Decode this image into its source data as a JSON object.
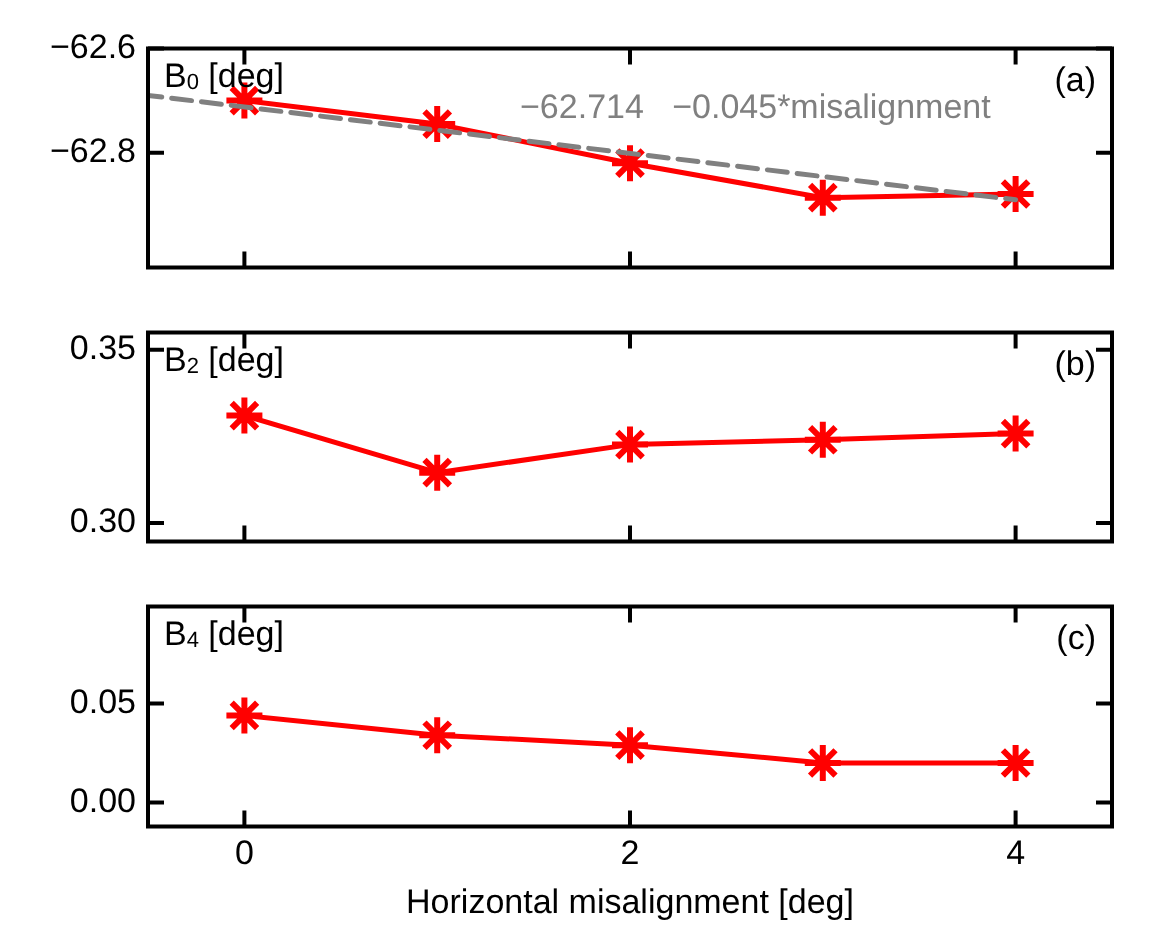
{
  "chart_data": [
    {
      "type": "line",
      "ylabel": "B$_{0}$ [deg]",
      "x": [
        0,
        1,
        2,
        3,
        4
      ],
      "xlim": [
        -0.5,
        4.5
      ],
      "xticks": [
        0,
        2,
        4
      ],
      "ylim": [
        -63.02,
        -62.6
      ],
      "yticks": [
        -62.6,
        -62.8
      ],
      "tick_labels": "y",
      "marker": "cross",
      "line_style": "solid",
      "series": [
        {
          "color": "#ff0000",
          "values": [
            -62.7,
            -62.745,
            -62.82,
            -62.886,
            -62.879
          ]
        },
        {
          "type": "line",
          "color": "#808080",
          "x": [
            -0.5,
            4
          ],
          "values": [
            -62.69,
            -62.89
          ],
          "marker": "none",
          "line_style": "dashed"
        }
      ],
      "annotations": [
        "(a)",
        "−62.714   −0.045*misalignment"
      ]
    },
    {
      "type": "line",
      "ylabel": "B$_{2}$ [deg]",
      "x": [
        0,
        1,
        2,
        3,
        4
      ],
      "xlim": [
        -0.5,
        4.5
      ],
      "xticks": [
        0,
        2,
        4
      ],
      "ylim": [
        0.2946,
        0.355
      ],
      "yticks": [
        0.35,
        {
          "value": 0.3,
          "label": "0.30"
        }
      ],
      "tick_labels": "y",
      "marker": "cross",
      "line_style": "solid",
      "series": [
        {
          "color": "#ff0000",
          "values": [
            0.331,
            0.3145,
            0.3226,
            0.324,
            0.3258
          ]
        }
      ],
      "annotations": [
        "(b)"
      ]
    },
    {
      "type": "line",
      "ylabel": "B$_{4}$ [deg]",
      "xlabel": "Horizontal misalignment [deg]",
      "x": [
        0,
        1,
        2,
        3,
        4
      ],
      "xlim": [
        -0.5,
        4.5
      ],
      "xticks": [
        0,
        2,
        4
      ],
      "ylim": [
        -0.012,
        0.099
      ],
      "yticks": [
        0.05,
        {
          "value": 0,
          "label": "0.00"
        }
      ],
      "marker": "cross",
      "line_style": "solid",
      "series": [
        {
          "color": "#ff0000",
          "values": [
            0.044,
            0.034,
            0.029,
            0.02,
            0.02
          ]
        }
      ],
      "annotations": [
        "(c)"
      ]
    }
  ]
}
